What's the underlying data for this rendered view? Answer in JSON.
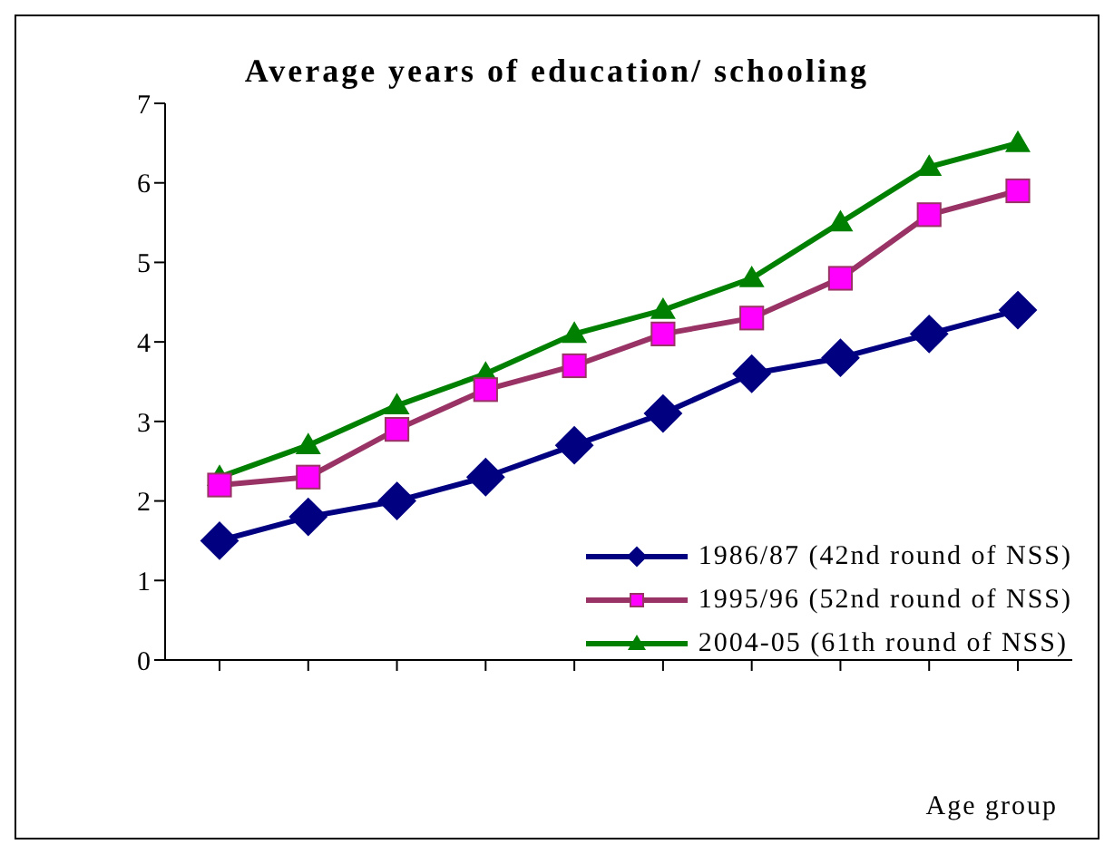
{
  "chart_data": {
    "type": "line",
    "title": "Average years of education/ schooling",
    "xlabel": "Age group",
    "categories": [
      null,
      null,
      null,
      null,
      null,
      null,
      null,
      null,
      null,
      null
    ],
    "series": [
      {
        "name": "1986/87 (42nd round of NSS)",
        "color": "#000080",
        "marker": "diamond",
        "values": [
          1.5,
          1.8,
          2.0,
          2.3,
          2.7,
          3.1,
          3.6,
          3.8,
          4.1,
          4.4
        ]
      },
      {
        "name": "1995/96 (52nd round of NSS)",
        "color": "#993366",
        "marker": "square",
        "values": [
          2.2,
          2.3,
          2.9,
          3.4,
          3.7,
          4.1,
          4.3,
          4.8,
          5.6,
          5.9
        ]
      },
      {
        "name": "2004-05 (61th round of NSS)",
        "color": "#008000",
        "marker": "triangle",
        "values": [
          2.3,
          2.7,
          3.2,
          3.6,
          4.1,
          4.4,
          4.8,
          5.5,
          6.2,
          6.5
        ]
      }
    ],
    "ylim": [
      0,
      7
    ],
    "yticks": [
      0,
      1,
      2,
      3,
      4,
      5,
      6,
      7
    ],
    "grid": false,
    "legend": "bottom right",
    "line_style": "solid"
  }
}
